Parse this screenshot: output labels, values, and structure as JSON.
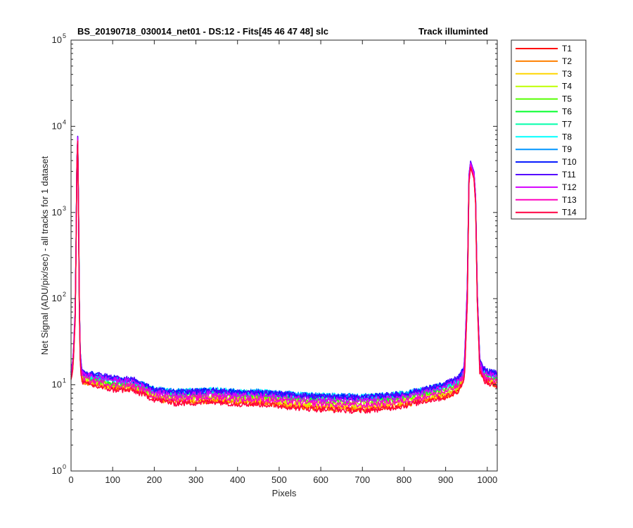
{
  "chart_data": {
    "type": "line",
    "title": "BS_20190718_030014_net01 - DS:12 - Fits[45  46  47  48]   slc",
    "subtitle": "Track illuminted",
    "xlabel": "Pixels",
    "ylabel": "Net Signal (ADU/pix/sec) - all tracks for 1 dataset",
    "xlim": [
      0,
      1024
    ],
    "ylim": [
      1,
      100000
    ],
    "yscale": "log",
    "xticks": [
      "0",
      "100",
      "200",
      "300",
      "400",
      "500",
      "600",
      "700",
      "800",
      "900",
      "1000"
    ],
    "yticks": [
      {
        "base": "10",
        "exp": "0"
      },
      {
        "base": "10",
        "exp": "1"
      },
      {
        "base": "10",
        "exp": "2"
      },
      {
        "base": "10",
        "exp": "3"
      },
      {
        "base": "10",
        "exp": "4"
      },
      {
        "base": "10",
        "exp": "5"
      }
    ],
    "grid": false,
    "legend_position": "outside-right",
    "x": [
      0,
      5,
      10,
      13,
      15,
      17,
      19,
      21,
      25,
      30,
      50,
      100,
      150,
      200,
      250,
      300,
      350,
      400,
      450,
      500,
      550,
      600,
      650,
      700,
      750,
      800,
      850,
      900,
      930,
      945,
      952,
      956,
      960,
      964,
      968,
      972,
      976,
      982,
      990,
      1000,
      1024
    ],
    "series": [
      {
        "name": "T1",
        "color": "#ff0000",
        "values": [
          12,
          16,
          60,
          900,
          12500,
          3500,
          260,
          24,
          12,
          11,
          10.3,
          9.2,
          9.0,
          7.0,
          6.3,
          6.4,
          6.6,
          6.2,
          6.2,
          5.9,
          5.6,
          5.4,
          5.3,
          5.2,
          5.5,
          5.9,
          6.7,
          7.3,
          8.6,
          11.5,
          90,
          2200,
          3400,
          2900,
          2500,
          1300,
          95,
          15,
          12,
          11,
          10
        ]
      },
      {
        "name": "T2",
        "color": "#ff8000",
        "values": [
          12,
          16,
          60,
          900,
          12500,
          3500,
          260,
          24,
          12,
          11,
          10.3,
          9.2,
          9.0,
          7.0,
          6.3,
          6.4,
          6.6,
          6.2,
          6.2,
          5.9,
          5.6,
          5.4,
          5.3,
          5.2,
          5.5,
          5.9,
          6.7,
          7.3,
          8.6,
          11.5,
          90,
          2200,
          3400,
          2900,
          2500,
          1300,
          95,
          15,
          12,
          11,
          10
        ]
      },
      {
        "name": "T3",
        "color": "#ffd500",
        "values": [
          12.5,
          16.5,
          62,
          920,
          12800,
          3600,
          270,
          25,
          12.5,
          11.5,
          10.8,
          9.6,
          9.4,
          7.4,
          6.7,
          6.8,
          7.0,
          6.6,
          6.6,
          6.3,
          6.0,
          5.8,
          5.7,
          5.6,
          5.9,
          6.3,
          7.1,
          7.8,
          9.1,
          12.2,
          100,
          2300,
          3500,
          3000,
          2600,
          1350,
          100,
          16,
          12.8,
          11.8,
          10.8
        ]
      },
      {
        "name": "T4",
        "color": "#bfff00",
        "values": [
          12.8,
          17,
          63,
          930,
          13000,
          3650,
          275,
          26,
          13,
          12,
          11.2,
          10.0,
          9.8,
          7.8,
          7.1,
          7.2,
          7.4,
          7.0,
          7.0,
          6.7,
          6.4,
          6.2,
          6.1,
          6.0,
          6.3,
          6.7,
          7.5,
          8.3,
          9.6,
          12.8,
          105,
          2350,
          3550,
          3050,
          2650,
          1380,
          103,
          16.5,
          13.3,
          12.3,
          11.3
        ]
      },
      {
        "name": "T5",
        "color": "#55ff00",
        "values": [
          13,
          17.5,
          64,
          940,
          13200,
          3700,
          280,
          27,
          13.5,
          12.5,
          11.6,
          10.4,
          10.2,
          8.1,
          7.5,
          7.6,
          7.8,
          7.4,
          7.4,
          7.1,
          6.8,
          6.6,
          6.5,
          6.4,
          6.7,
          7.1,
          7.9,
          8.8,
          10.1,
          13.4,
          110,
          2400,
          3600,
          3100,
          2700,
          1400,
          106,
          17,
          13.8,
          12.8,
          11.8
        ]
      },
      {
        "name": "T6",
        "color": "#00ff2a",
        "values": [
          13.2,
          18,
          65,
          950,
          13400,
          3750,
          285,
          27.5,
          13.8,
          12.8,
          12.0,
          10.8,
          10.5,
          8.4,
          7.9,
          8.0,
          8.2,
          7.8,
          7.8,
          7.5,
          7.2,
          7.0,
          6.9,
          6.8,
          7.1,
          7.5,
          8.3,
          9.2,
          10.6,
          14.0,
          115,
          2450,
          3650,
          3150,
          2750,
          1420,
          108,
          17.5,
          14.2,
          13.2,
          12.2
        ]
      },
      {
        "name": "T7",
        "color": "#00ffaa",
        "values": [
          13.4,
          18.5,
          66,
          960,
          13600,
          3800,
          290,
          28,
          14,
          13,
          12.4,
          11.2,
          10.8,
          8.7,
          8.2,
          8.3,
          8.5,
          8.1,
          8.1,
          7.8,
          7.5,
          7.3,
          7.2,
          7.1,
          7.4,
          7.8,
          8.6,
          9.6,
          11.0,
          14.5,
          120,
          2500,
          3700,
          3200,
          2800,
          1450,
          110,
          18,
          14.6,
          13.6,
          12.6
        ]
      },
      {
        "name": "T8",
        "color": "#00ffff",
        "values": [
          13.5,
          19,
          67,
          970,
          13800,
          3850,
          295,
          28.5,
          14.3,
          13.3,
          12.7,
          11.5,
          11.0,
          8.9,
          8.4,
          8.5,
          8.7,
          8.3,
          8.3,
          8.0,
          7.7,
          7.5,
          7.4,
          7.3,
          7.6,
          8.0,
          8.8,
          9.9,
          11.3,
          14.9,
          125,
          2550,
          3750,
          3250,
          2850,
          1470,
          112,
          18.3,
          14.9,
          13.9,
          12.9
        ]
      },
      {
        "name": "T9",
        "color": "#0095ff",
        "values": [
          13.6,
          19.5,
          68,
          980,
          14000,
          3900,
          300,
          29,
          14.5,
          13.5,
          13.0,
          11.8,
          11.2,
          8.9,
          8.4,
          8.5,
          8.7,
          8.3,
          8.3,
          8.0,
          7.7,
          7.5,
          7.4,
          7.3,
          7.6,
          8.0,
          8.9,
          10.1,
          11.6,
          15.3,
          130,
          2600,
          3800,
          3300,
          2900,
          1500,
          114,
          18.6,
          15.2,
          14.2,
          13.2
        ]
      },
      {
        "name": "T10",
        "color": "#0015ff",
        "values": [
          13.8,
          20,
          69,
          990,
          14500,
          3950,
          305,
          29.5,
          14.8,
          13.8,
          13.3,
          12.1,
          11.4,
          8.8,
          8.3,
          8.4,
          8.6,
          8.2,
          8.2,
          7.9,
          7.6,
          7.4,
          7.3,
          7.2,
          7.5,
          7.9,
          8.9,
          10.3,
          11.9,
          15.7,
          140,
          2700,
          3900,
          3350,
          2950,
          1520,
          116,
          19,
          15.5,
          14.5,
          13.5
        ]
      },
      {
        "name": "T11",
        "color": "#5500ff",
        "values": [
          13.8,
          20,
          69,
          990,
          14800,
          3980,
          305,
          29.5,
          14.8,
          13.8,
          13.4,
          12.2,
          11.5,
          8.7,
          8.2,
          8.3,
          8.5,
          8.1,
          8.1,
          7.8,
          7.5,
          7.3,
          7.2,
          7.1,
          7.4,
          7.8,
          8.8,
          10.3,
          12.0,
          15.8,
          140,
          2700,
          3950,
          3400,
          2980,
          1530,
          116,
          19,
          15.5,
          14.5,
          13.5
        ]
      },
      {
        "name": "T12",
        "color": "#d400ff",
        "values": [
          13.5,
          19,
          67,
          960,
          14200,
          3850,
          295,
          28,
          14.2,
          13.2,
          12.6,
          11.4,
          10.9,
          8.2,
          7.6,
          7.7,
          7.9,
          7.5,
          7.5,
          7.2,
          6.9,
          6.7,
          6.6,
          6.5,
          6.8,
          7.2,
          8.1,
          9.4,
          11.0,
          14.5,
          125,
          2550,
          3750,
          3250,
          2850,
          1470,
          110,
          17.8,
          14.4,
          13.4,
          12.4
        ]
      },
      {
        "name": "T13",
        "color": "#ff00bf",
        "values": [
          12.8,
          17.5,
          64,
          920,
          13300,
          3650,
          280,
          26,
          13,
          12,
          11.2,
          10.0,
          9.7,
          7.5,
          6.9,
          7.0,
          7.2,
          6.8,
          6.8,
          6.5,
          6.2,
          6.0,
          5.9,
          5.8,
          6.1,
          6.5,
          7.3,
          8.3,
          9.7,
          12.8,
          105,
          2350,
          3550,
          3050,
          2650,
          1380,
          100,
          16,
          12.8,
          11.8,
          10.8
        ]
      },
      {
        "name": "T14",
        "color": "#ff0040",
        "values": [
          12,
          16,
          60,
          880,
          12800,
          3500,
          260,
          24,
          11.5,
          10.5,
          9.8,
          8.8,
          8.6,
          6.8,
          6.1,
          6.2,
          6.4,
          6.0,
          6.0,
          5.7,
          5.4,
          5.2,
          5.1,
          5.0,
          5.3,
          5.7,
          6.5,
          7.2,
          8.6,
          11.5,
          90,
          2200,
          3350,
          2850,
          2450,
          1280,
          92,
          14.5,
          11.5,
          10.5,
          9.5
        ]
      }
    ]
  }
}
